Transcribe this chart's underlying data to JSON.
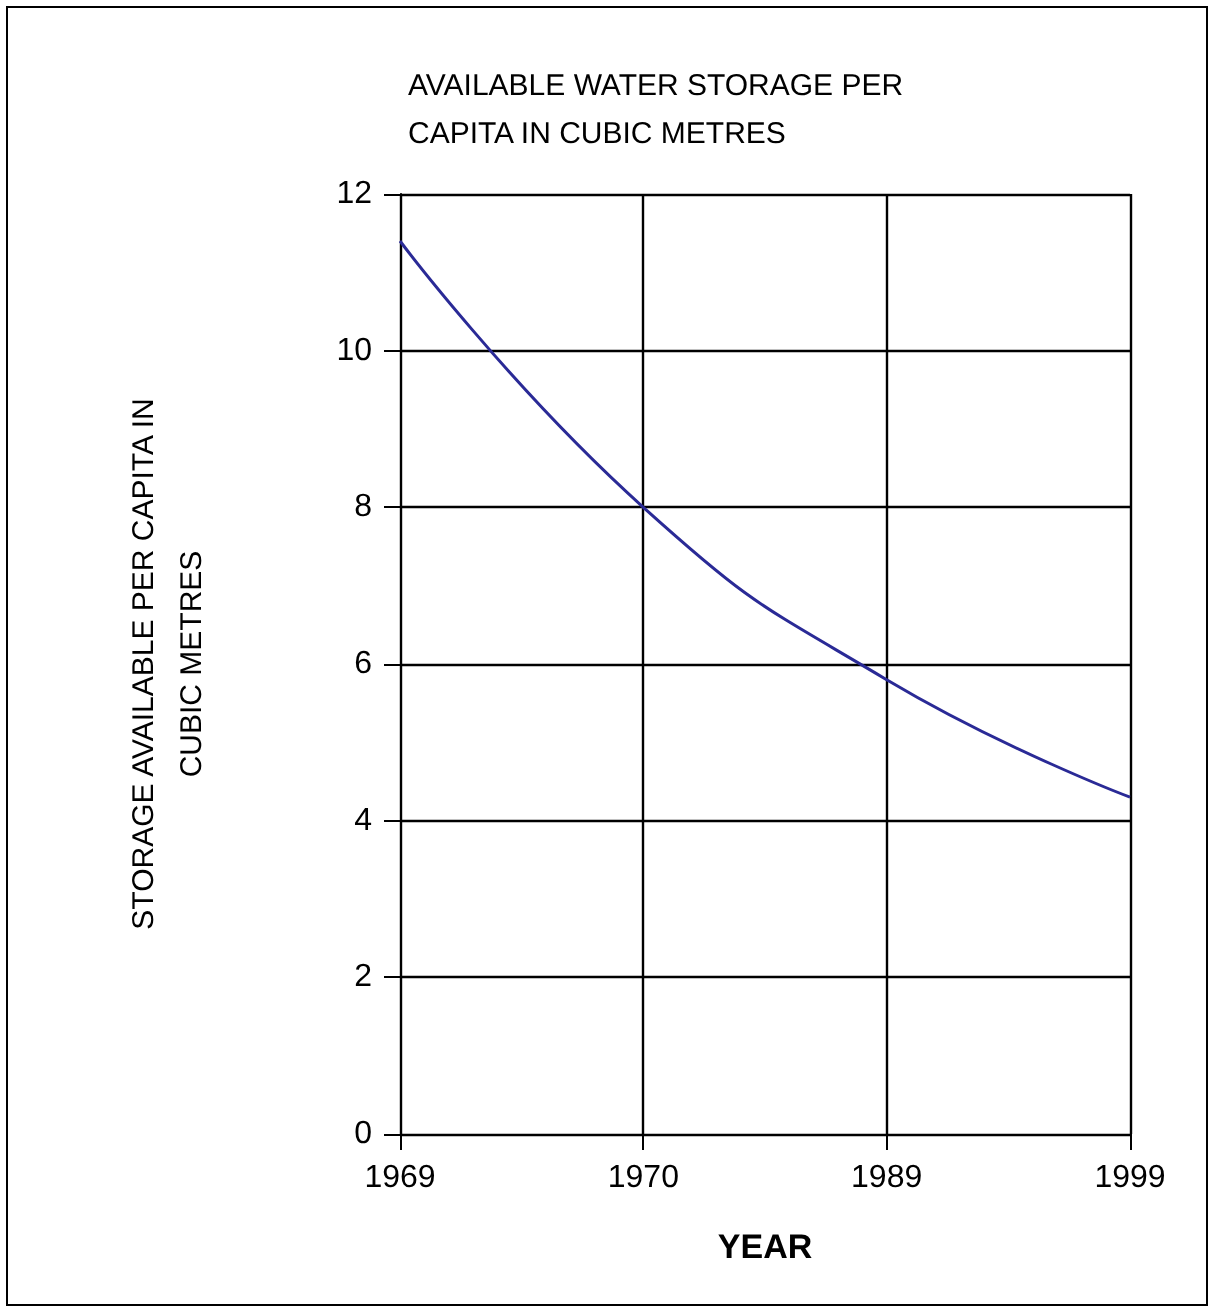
{
  "chart_data": {
    "type": "line",
    "title": "AVAILABLE WATER STORAGE PER\nCAPITA IN CUBIC METRES",
    "xlabel": "YEAR",
    "ylabel": "STORAGE AVAILABLE PER CAPITA IN\nCUBIC METRES",
    "categories": [
      "1969",
      "1970",
      "1989",
      "1999"
    ],
    "series": [
      {
        "color": "#2a2a96",
        "values": [
          11.4,
          8.0,
          5.8,
          4.3
        ]
      }
    ],
    "ylim": [
      0,
      12
    ],
    "yticks": [
      0,
      2,
      4,
      6,
      8,
      10,
      12
    ],
    "grid": true,
    "marker": "none",
    "line_style": "solid"
  }
}
